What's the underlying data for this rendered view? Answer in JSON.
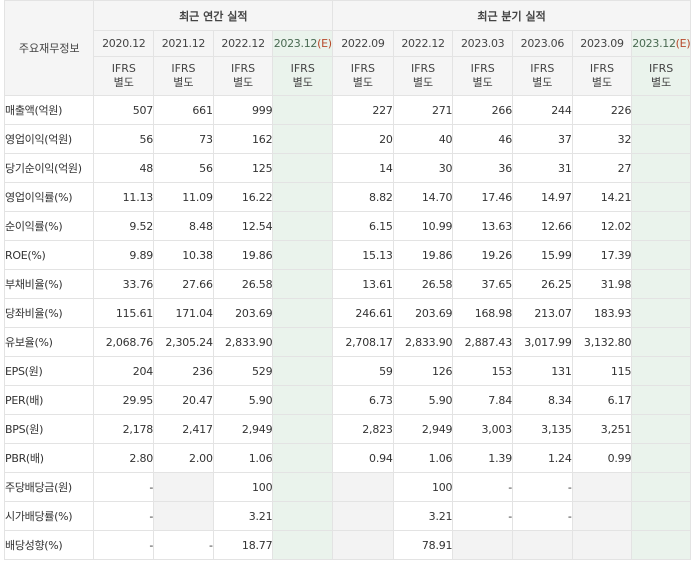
{
  "header": {
    "label_column": "주요재무정보",
    "annual_group": "최근 연간 실적",
    "quarter_group": "최근 분기 실적"
  },
  "periods": [
    {
      "label": "2020.12",
      "estimate": false
    },
    {
      "label": "2021.12",
      "estimate": false
    },
    {
      "label": "2022.12",
      "estimate": false
    },
    {
      "label": "2023.12",
      "estimate": true,
      "estimate_mark": "(E)"
    },
    {
      "label": "2022.09",
      "estimate": false
    },
    {
      "label": "2022.12",
      "estimate": false
    },
    {
      "label": "2023.03",
      "estimate": false
    },
    {
      "label": "2023.06",
      "estimate": false
    },
    {
      "label": "2023.09",
      "estimate": false
    },
    {
      "label": "2023.12",
      "estimate": true,
      "estimate_mark": "(E)"
    }
  ],
  "basis_label": {
    "line1": "IFRS",
    "line2": "별도"
  },
  "rows": [
    {
      "label": "매출액(억원)",
      "values": [
        "507",
        "661",
        "999",
        "",
        "227",
        "271",
        "266",
        "244",
        "226",
        ""
      ]
    },
    {
      "label": "영업이익(억원)",
      "values": [
        "56",
        "73",
        "162",
        "",
        "20",
        "40",
        "46",
        "37",
        "32",
        ""
      ]
    },
    {
      "label": "당기순이익(억원)",
      "values": [
        "48",
        "56",
        "125",
        "",
        "14",
        "30",
        "36",
        "31",
        "27",
        ""
      ]
    },
    {
      "label": "영업이익률(%)",
      "values": [
        "11.13",
        "11.09",
        "16.22",
        "",
        "8.82",
        "14.70",
        "17.46",
        "14.97",
        "14.21",
        ""
      ]
    },
    {
      "label": "순이익률(%)",
      "values": [
        "9.52",
        "8.48",
        "12.54",
        "",
        "6.15",
        "10.99",
        "13.63",
        "12.66",
        "12.02",
        ""
      ]
    },
    {
      "label": "ROE(%)",
      "values": [
        "9.89",
        "10.38",
        "19.86",
        "",
        "15.13",
        "19.86",
        "19.26",
        "15.99",
        "17.39",
        ""
      ]
    },
    {
      "label": "부채비율(%)",
      "values": [
        "33.76",
        "27.66",
        "26.58",
        "",
        "13.61",
        "26.58",
        "37.65",
        "26.25",
        "31.98",
        ""
      ]
    },
    {
      "label": "당좌비율(%)",
      "values": [
        "115.61",
        "171.04",
        "203.69",
        "",
        "246.61",
        "203.69",
        "168.98",
        "213.07",
        "183.93",
        ""
      ]
    },
    {
      "label": "유보율(%)",
      "values": [
        "2,068.76",
        "2,305.24",
        "2,833.90",
        "",
        "2,708.17",
        "2,833.90",
        "2,887.43",
        "3,017.99",
        "3,132.80",
        ""
      ]
    },
    {
      "label": "EPS(원)",
      "values": [
        "204",
        "236",
        "529",
        "",
        "59",
        "126",
        "153",
        "131",
        "115",
        ""
      ]
    },
    {
      "label": "PER(배)",
      "values": [
        "29.95",
        "20.47",
        "5.90",
        "",
        "6.73",
        "5.90",
        "7.84",
        "8.34",
        "6.17",
        ""
      ]
    },
    {
      "label": "BPS(원)",
      "values": [
        "2,178",
        "2,417",
        "2,949",
        "",
        "2,823",
        "2,949",
        "3,003",
        "3,135",
        "3,251",
        ""
      ]
    },
    {
      "label": "PBR(배)",
      "values": [
        "2.80",
        "2.00",
        "1.06",
        "",
        "0.94",
        "1.06",
        "1.39",
        "1.24",
        "0.99",
        ""
      ]
    },
    {
      "label": "주당배당금(원)",
      "values": [
        "-",
        "",
        "100",
        "",
        "",
        "100",
        "-",
        "-",
        "",
        ""
      ]
    },
    {
      "label": "시가배당률(%)",
      "values": [
        "-",
        "",
        "3.21",
        "",
        "",
        "3.21",
        "-",
        "-",
        "",
        ""
      ]
    },
    {
      "label": "배당성향(%)",
      "values": [
        "-",
        "-",
        "18.77",
        "",
        "",
        "78.91",
        "",
        "",
        "",
        ""
      ]
    }
  ],
  "colors": {
    "header_bg": "#f5f5f5",
    "estimate_bg": "#eaf3ec",
    "ifrs_text": "#e2540b",
    "blank_cell_bg": "#f3f3f3"
  }
}
